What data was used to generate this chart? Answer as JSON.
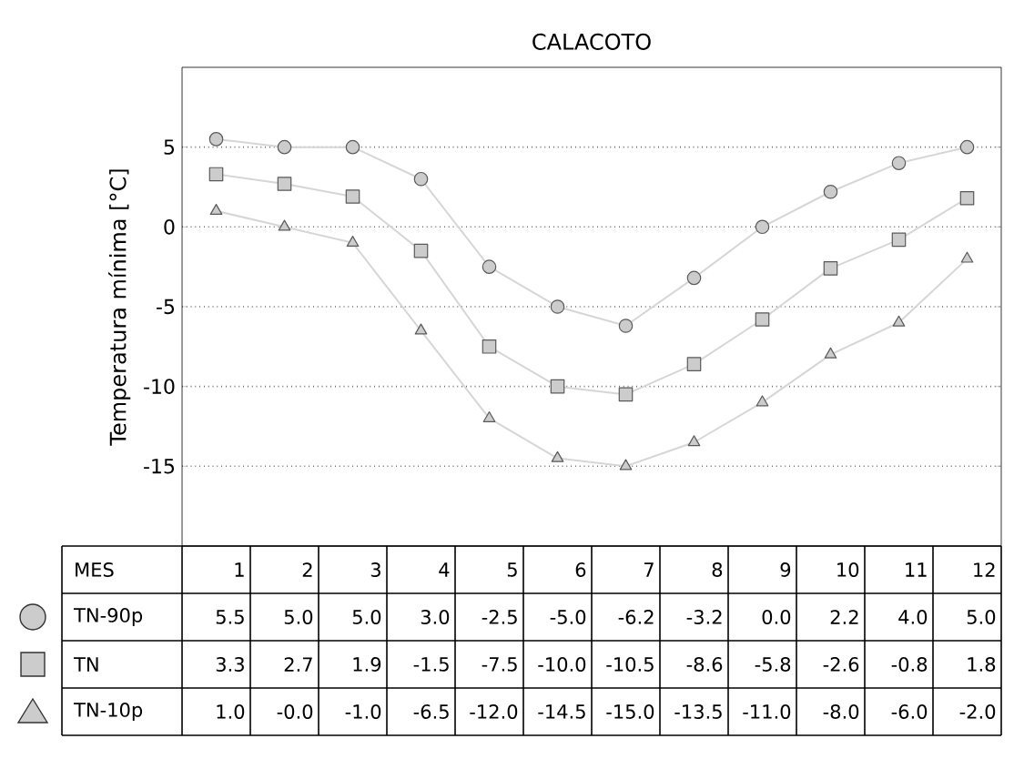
{
  "chart_data": {
    "type": "line",
    "title": "CALACOTO",
    "xlabel": "MES",
    "ylabel": "Temperatura mínima [°C]",
    "categories": [
      "1",
      "2",
      "3",
      "4",
      "5",
      "6",
      "7",
      "8",
      "9",
      "10",
      "11",
      "12"
    ],
    "series": [
      {
        "name": "TN-90p",
        "color": "#cccccc",
        "marker": "circle",
        "values": [
          5.5,
          5.0,
          5.0,
          3.0,
          -2.5,
          -5.0,
          -6.2,
          -3.2,
          0.0,
          2.2,
          4.0,
          5.0
        ],
        "value_labels": [
          "5.5",
          "5.0",
          "5.0",
          "3.0",
          "-2.5",
          "-5.0",
          "-6.2",
          "-3.2",
          "0.0",
          "2.2",
          "4.0",
          "5.0"
        ]
      },
      {
        "name": "TN",
        "color": "#cccccc",
        "marker": "square",
        "values": [
          3.3,
          2.7,
          1.9,
          -1.5,
          -7.5,
          -10.0,
          -10.5,
          -8.6,
          -5.8,
          -2.6,
          -0.8,
          1.8
        ],
        "value_labels": [
          "3.3",
          "2.7",
          "1.9",
          "-1.5",
          "-7.5",
          "-10.0",
          "-10.5",
          "-8.6",
          "-5.8",
          "-2.6",
          "-0.8",
          "1.8"
        ]
      },
      {
        "name": "TN-10p",
        "color": "#cccccc",
        "marker": "triangle",
        "values": [
          1.0,
          0.0,
          -1.0,
          -6.5,
          -12.0,
          -14.5,
          -15.0,
          -13.5,
          -11.0,
          -8.0,
          -6.0,
          -2.0
        ],
        "value_labels": [
          "1.0",
          "-0.0",
          "-1.0",
          "-6.5",
          "-12.0",
          "-14.5",
          "-15.0",
          "-13.5",
          "-11.0",
          "-8.0",
          "-6.0",
          "-2.0"
        ]
      }
    ],
    "ylim": [
      -20,
      10
    ],
    "yticks": [
      -15,
      -10,
      -5,
      0,
      5
    ],
    "grid": "y",
    "legend": "bottom left",
    "line_style": "solid"
  }
}
